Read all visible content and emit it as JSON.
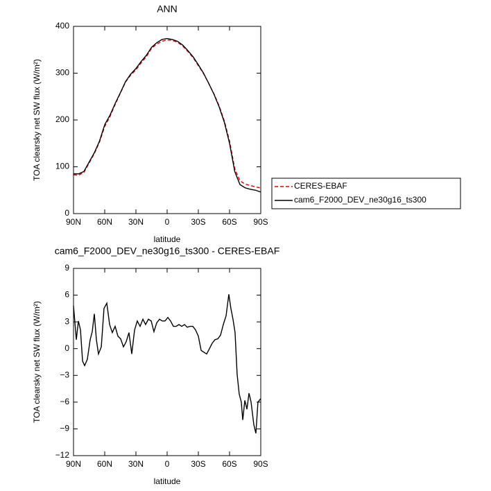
{
  "chart_data": [
    {
      "type": "line",
      "title": "ANN",
      "xlabel": "latitude",
      "ylabel": "TOA clearsky net SW flux (W/m²)",
      "x": [
        90,
        85,
        80,
        75,
        70,
        65,
        60,
        55,
        50,
        45,
        40,
        35,
        30,
        25,
        20,
        15,
        10,
        5,
        0,
        -5,
        -10,
        -15,
        -20,
        -25,
        -30,
        -35,
        -40,
        -45,
        -50,
        -55,
        -60,
        -65,
        -70,
        -75,
        -80,
        -85,
        -90
      ],
      "series": [
        {
          "name": "CERES-EBAF",
          "color": "#e00000",
          "linestyle": "dashed",
          "values": [
            83,
            82,
            88,
            108,
            128,
            153,
            186,
            207,
            233,
            257,
            281,
            296,
            307,
            322,
            335,
            353,
            362,
            368,
            371,
            370,
            366,
            358,
            346,
            333,
            316,
            299,
            278,
            256,
            230,
            198,
            155,
            96,
            70,
            63,
            60,
            57,
            55
          ]
        },
        {
          "name": "cam6_F2000_DEV_ne30g16_ts300",
          "color": "#000000",
          "linestyle": "solid",
          "values": [
            85,
            85,
            90,
            110,
            130,
            155,
            190,
            210,
            235,
            258,
            282,
            298,
            310,
            325,
            338,
            355,
            365,
            372,
            374,
            372,
            368,
            360,
            348,
            335,
            318,
            300,
            278,
            255,
            228,
            195,
            150,
            90,
            62,
            55,
            52,
            50,
            46
          ]
        }
      ],
      "xlim": [
        90,
        -90
      ],
      "xticks": [
        {
          "value": 90,
          "label": "90N"
        },
        {
          "value": 60,
          "label": "60N"
        },
        {
          "value": 30,
          "label": "30N"
        },
        0,
        {
          "value": -30,
          "label": "30S"
        },
        {
          "value": -60,
          "label": "60S"
        },
        {
          "value": -90,
          "label": "90S"
        }
      ],
      "ylim": [
        0,
        400
      ],
      "yticks": [
        0,
        100,
        200,
        300,
        400
      ],
      "legend": "right"
    },
    {
      "type": "line",
      "title": "cam6_F2000_DEV_ne30g16_ts300 - CERES-EBAF",
      "xlabel": "latitude",
      "ylabel": "TOA clearsky net SW flux (W/m²)",
      "x": [
        90,
        87.3,
        85.3,
        83.3,
        81.3,
        79.3,
        76.7,
        74,
        72,
        70,
        68,
        66,
        63.3,
        60.7,
        58,
        55.3,
        52.7,
        50,
        47.3,
        44.7,
        42,
        39.3,
        36.7,
        34,
        31.3,
        28.7,
        26,
        23.3,
        20.7,
        18,
        15.3,
        12.7,
        10,
        7.3,
        4.7,
        2,
        -0.7,
        -3.3,
        -6,
        -8.7,
        -11.3,
        -14,
        -16.7,
        -19.3,
        -22,
        -24.7,
        -27.3,
        -30,
        -32.7,
        -35.3,
        -38,
        -40.7,
        -43.3,
        -46,
        -48.7,
        -51.3,
        -54,
        -56.7,
        -59.3,
        -61.3,
        -63.3,
        -65.3,
        -67.3,
        -69.3,
        -71.3,
        -72.7,
        -74.7,
        -76.7,
        -78.7,
        -80.7,
        -83.3,
        -85.3,
        -87.3,
        -90
      ],
      "series": [
        {
          "name": "cam6_F2000_DEV_ne30g16_ts300 - CERES-EBAF",
          "color": "#000000",
          "linestyle": "solid",
          "values": [
            4.8,
            1.0,
            3.1,
            2.1,
            -1.4,
            -1.9,
            -1.2,
            1.0,
            1.9,
            3.9,
            1.0,
            -0.6,
            0.2,
            4.5,
            5.1,
            2.7,
            1.8,
            2.5,
            1.4,
            1.1,
            0.2,
            0.8,
            1.8,
            -0.6,
            2.1,
            3.1,
            2.5,
            3.3,
            2.7,
            3.3,
            3.1,
            1.9,
            2.9,
            3.3,
            3.1,
            3.1,
            3.5,
            3.1,
            2.5,
            2.5,
            2.7,
            2.5,
            2.7,
            2.4,
            2.5,
            2.5,
            2.1,
            1.4,
            -0.2,
            -0.4,
            -0.6,
            0.0,
            0.6,
            1.0,
            1.1,
            1.5,
            2.7,
            3.7,
            6.1,
            4.5,
            3.3,
            1.8,
            -2.9,
            -5.1,
            -6.0,
            -8.0,
            -5.8,
            -6.8,
            -5.0,
            -6.0,
            -8.5,
            -9.5,
            -6.0,
            -5.6
          ]
        }
      ],
      "xlim": [
        90,
        -90
      ],
      "xticks": [
        {
          "value": 90,
          "label": "90N"
        },
        {
          "value": 60,
          "label": "60N"
        },
        {
          "value": 30,
          "label": "30N"
        },
        0,
        {
          "value": -30,
          "label": "30S"
        },
        {
          "value": -60,
          "label": "60S"
        },
        {
          "value": -90,
          "label": "90S"
        }
      ],
      "ylim": [
        -12,
        9
      ],
      "yticks": [
        {
          "value": -12,
          "label": "−12"
        },
        {
          "value": -9,
          "label": "−9"
        },
        {
          "value": -6,
          "label": "−6"
        },
        {
          "value": -3,
          "label": "−3"
        },
        0,
        3,
        6,
        9
      ]
    }
  ]
}
